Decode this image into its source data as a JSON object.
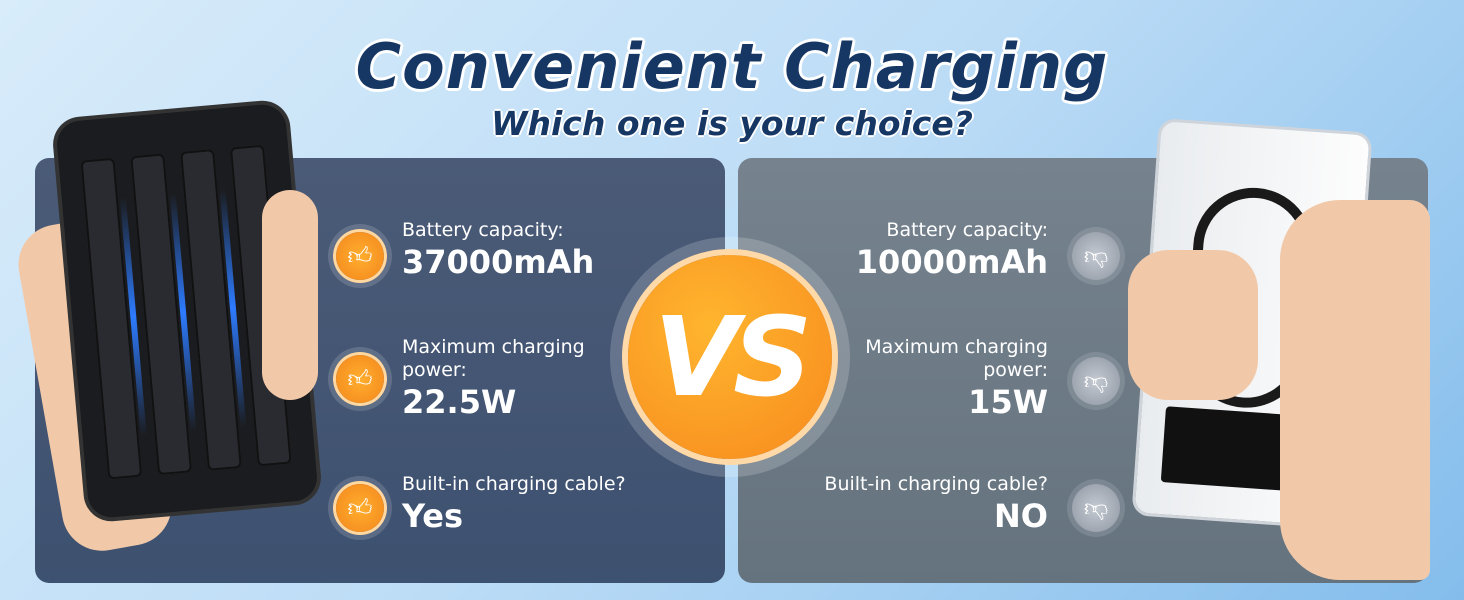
{
  "header": {
    "title": "Convenient Charging",
    "subtitle": "Which one is your choice?"
  },
  "vs_label": "VS",
  "colors": {
    "title": "#163764",
    "accent_orange": "#f78a1e",
    "left_panel": "#44566f",
    "right_panel": "#6f7d88"
  },
  "left": {
    "icon": "thumbs-up-icon",
    "rows": [
      {
        "label": "Battery capacity:",
        "value": "37000mAh"
      },
      {
        "label": "Maximum charging power:",
        "value": "22.5W"
      },
      {
        "label": "Built-in charging cable?",
        "value": "Yes"
      }
    ]
  },
  "right": {
    "icon": "thumbs-down-icon",
    "rows": [
      {
        "label": "Battery capacity:",
        "value": "10000mAh"
      },
      {
        "label": "Maximum charging power:",
        "value": "15W"
      },
      {
        "label": "Built-in charging cable?",
        "value": "NO"
      }
    ]
  }
}
